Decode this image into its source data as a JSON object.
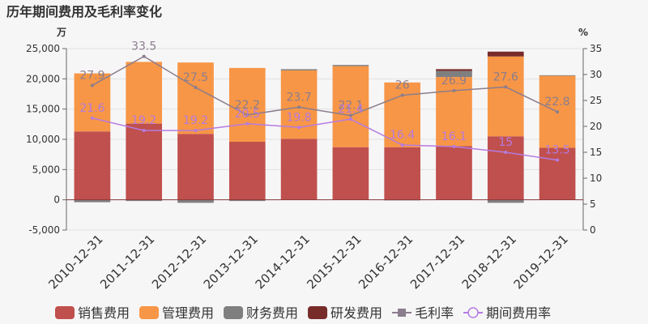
{
  "chart_data": {
    "type": "bar",
    "title": "历年期间费用及毛利率变化",
    "y_left_unit": "万",
    "y_right_unit": "%",
    "categories": [
      "2010-12-31",
      "2011-12-31",
      "2012-12-31",
      "2013-12-31",
      "2014-12-31",
      "2015-12-31",
      "2016-12-31",
      "2017-12-31",
      "2018-12-31",
      "2019-12-31"
    ],
    "y_left": {
      "min": -5000,
      "max": 25000,
      "ticks": [
        -5000,
        0,
        5000,
        10000,
        15000,
        20000,
        25000
      ],
      "tick_labels": [
        "-5,000",
        "0",
        "5,000",
        "10,000",
        "15,000",
        "20,000",
        "25,000"
      ]
    },
    "y_right": {
      "min": 0,
      "max": 35,
      "ticks": [
        0,
        5,
        10,
        15,
        20,
        25,
        30,
        35
      ],
      "tick_labels": [
        "0",
        "5",
        "10",
        "15",
        "20",
        "25",
        "30",
        "35"
      ]
    },
    "grid": true,
    "legend_position": "bottom",
    "bar_series": [
      {
        "name": "销售费用",
        "color": "#c0504d",
        "values": [
          11300,
          12600,
          10900,
          9600,
          10100,
          8700,
          8700,
          8900,
          10500,
          8600
        ]
      },
      {
        "name": "管理费用",
        "color": "#f79646",
        "values": [
          9600,
          10200,
          11800,
          12200,
          11300,
          13400,
          10700,
          11400,
          13200,
          11900
        ]
      },
      {
        "name": "财务费用",
        "color": "#7f7f7f",
        "values": [
          -400,
          -200,
          -500,
          -200,
          200,
          200,
          -100,
          1000,
          -500,
          100
        ]
      },
      {
        "name": "研发费用",
        "color": "#772c2a",
        "values": [
          0,
          0,
          0,
          0,
          0,
          0,
          0,
          300,
          800,
          0
        ]
      }
    ],
    "line_series": [
      {
        "name": "毛利率",
        "color": "#8b7d8d",
        "marker": "square",
        "values": [
          27.9,
          33.5,
          27.5,
          22.2,
          23.7,
          22.1,
          26,
          26.9,
          27.6,
          22.8
        ],
        "labels": [
          "27.9",
          "33.5",
          "27.5",
          "22.2",
          "23.7",
          "22.1",
          "26",
          "26.9",
          "27.6",
          "22.8"
        ]
      },
      {
        "name": "期间费用率",
        "color": "#b57be0",
        "marker": "circle",
        "values": [
          21.6,
          19.2,
          19.2,
          20.5,
          19.8,
          21.4,
          16.4,
          16.1,
          15,
          13.5
        ],
        "labels": [
          "21.6",
          "19.2",
          "19.2",
          "20.5",
          "19.8",
          "21.4",
          "16.4",
          "16.1",
          "15",
          "13.5"
        ]
      }
    ]
  }
}
